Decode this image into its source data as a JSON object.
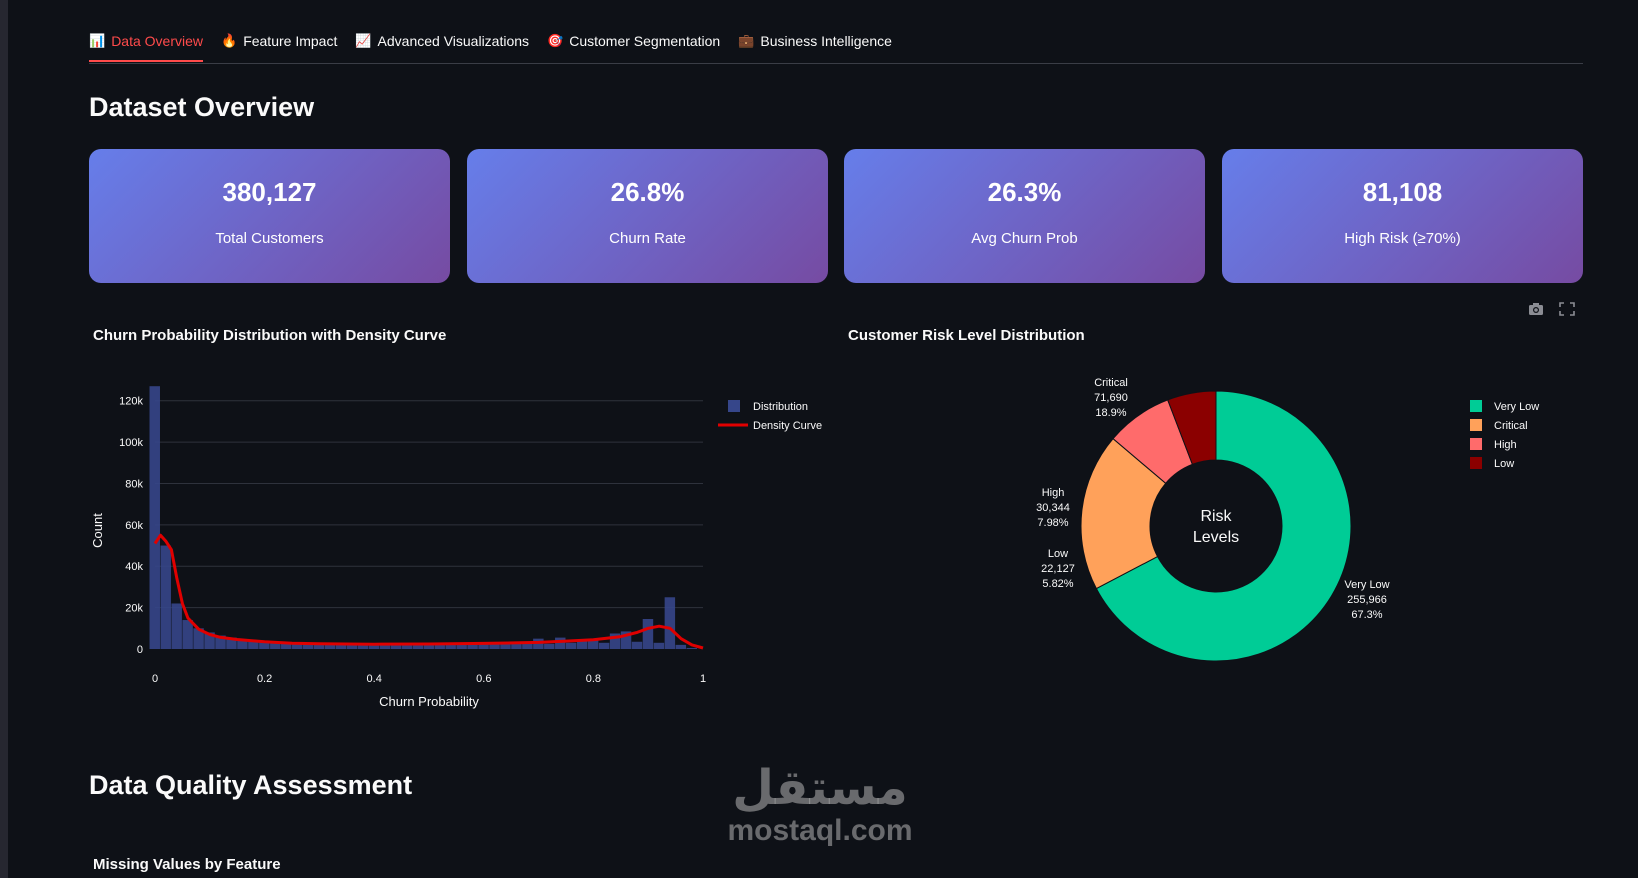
{
  "tabs": [
    {
      "icon": "📊",
      "label": "Data Overview",
      "active": true
    },
    {
      "icon": "🔥",
      "label": "Feature Impact",
      "active": false
    },
    {
      "icon": "📈",
      "label": "Advanced Visualizations",
      "active": false
    },
    {
      "icon": "🎯",
      "label": "Customer Segmentation",
      "active": false
    },
    {
      "icon": "💼",
      "label": "Business Intelligence",
      "active": false
    }
  ],
  "overview": {
    "heading": "Dataset Overview",
    "metrics": [
      {
        "value": "380,127",
        "label": "Total Customers"
      },
      {
        "value": "26.8%",
        "label": "Churn Rate"
      },
      {
        "value": "26.3%",
        "label": "Avg Churn Prob"
      },
      {
        "value": "81,108",
        "label": "High Risk (≥70%)"
      }
    ]
  },
  "toolbar": {
    "camera_icon": "camera-icon",
    "fullscreen_icon": "fullscreen-icon"
  },
  "chart_data": [
    {
      "type": "bar",
      "title": "Churn Probability Distribution with Density Curve",
      "xlabel": "Churn Probability",
      "ylabel": "Count",
      "xlim": [
        0,
        1
      ],
      "ylim": [
        0,
        130000
      ],
      "xticks": [
        "0",
        "0.2",
        "0.4",
        "0.6",
        "0.8",
        "1"
      ],
      "yticks": [
        "0",
        "20k",
        "40k",
        "60k",
        "80k",
        "100k",
        "120k"
      ],
      "grid": true,
      "legend_position": "top-right",
      "series": [
        {
          "name": "Distribution",
          "type": "bar",
          "color": "#36468a",
          "x": [
            0.0,
            0.02,
            0.04,
            0.06,
            0.08,
            0.1,
            0.12,
            0.14,
            0.16,
            0.18,
            0.2,
            0.22,
            0.24,
            0.26,
            0.28,
            0.3,
            0.32,
            0.34,
            0.36,
            0.38,
            0.4,
            0.42,
            0.44,
            0.46,
            0.48,
            0.5,
            0.52,
            0.54,
            0.56,
            0.58,
            0.6,
            0.62,
            0.64,
            0.66,
            0.68,
            0.7,
            0.72,
            0.74,
            0.76,
            0.78,
            0.8,
            0.82,
            0.84,
            0.86,
            0.88,
            0.9,
            0.92,
            0.94,
            0.96,
            0.98
          ],
          "values": [
            127000,
            50000,
            22000,
            14000,
            10000,
            8000,
            6500,
            5500,
            4500,
            4000,
            3500,
            3200,
            3000,
            2800,
            2600,
            2500,
            2400,
            2300,
            2200,
            2200,
            2100,
            2100,
            2000,
            2000,
            2000,
            2000,
            2000,
            2100,
            2100,
            2200,
            2300,
            2400,
            2500,
            3000,
            3500,
            5000,
            2500,
            5500,
            3000,
            4500,
            5000,
            3000,
            7500,
            8500,
            3500,
            14500,
            3000,
            25000,
            2000,
            500
          ]
        },
        {
          "name": "Density Curve",
          "type": "line",
          "color": "#e00000",
          "x": [
            0.0,
            0.01,
            0.02,
            0.03,
            0.04,
            0.05,
            0.06,
            0.08,
            0.1,
            0.12,
            0.15,
            0.2,
            0.25,
            0.3,
            0.4,
            0.5,
            0.6,
            0.7,
            0.75,
            0.8,
            0.85,
            0.88,
            0.9,
            0.92,
            0.94,
            0.96,
            0.98,
            1.0
          ],
          "values": [
            51000,
            55000,
            52000,
            48000,
            34000,
            22000,
            15000,
            9500,
            7000,
            5600,
            4600,
            3500,
            2800,
            2500,
            2300,
            2400,
            2700,
            3200,
            3800,
            4500,
            6000,
            8000,
            10000,
            11000,
            10000,
            5000,
            2000,
            500
          ]
        }
      ]
    },
    {
      "type": "pie",
      "title": "Customer Risk Level Distribution",
      "center_label": "Risk\nLevels",
      "legend_position": "top-right",
      "slices": [
        {
          "name": "Very Low",
          "value": 255966,
          "pct": "67.3%",
          "color": "#00cc96"
        },
        {
          "name": "Critical",
          "value": 71690,
          "pct": "18.9%",
          "color": "#ffa15a"
        },
        {
          "name": "High",
          "value": 30344,
          "pct": "7.98%",
          "color": "#ff6b6b"
        },
        {
          "name": "Low",
          "value": 22127,
          "pct": "5.82%",
          "color": "#8b0000"
        }
      ],
      "value_labels": [
        "255,966",
        "71,690",
        "30,344",
        "22,127"
      ]
    }
  ],
  "quality": {
    "heading": "Data Quality Assessment",
    "missing_title": "Missing Values by Feature"
  },
  "watermark": {
    "arabic": "مستقل",
    "latin": "mostaql.com"
  }
}
